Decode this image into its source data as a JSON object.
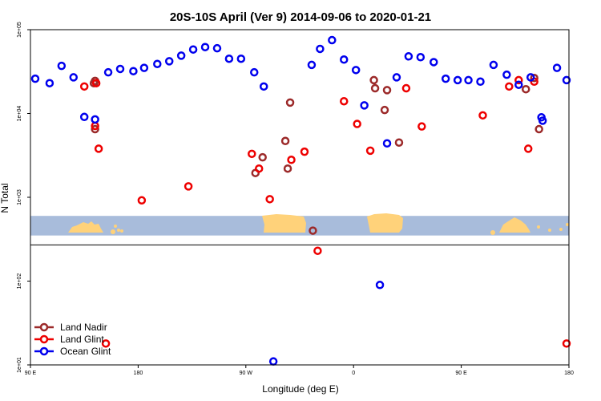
{
  "chart_data": {
    "type": "scatter",
    "title": "20S-10S April (Ver 9)   2014-09-06 to 2020-01-21",
    "xlabel": "Longitude (deg E)",
    "ylabel": "N Total",
    "xlim": [
      90,
      540
    ],
    "ylog": true,
    "ylim": [
      10,
      100000
    ],
    "x_ticks": [
      {
        "value": 90,
        "label": "90 E"
      },
      {
        "value": 180,
        "label": "180"
      },
      {
        "value": 270,
        "label": "90 W"
      },
      {
        "value": 360,
        "label": "0"
      },
      {
        "value": 450,
        "label": "90 E"
      },
      {
        "value": 540,
        "label": "180"
      }
    ],
    "y_ticks": [
      {
        "value": 10,
        "label": "1e+01"
      },
      {
        "value": 100,
        "label": "1e+02"
      },
      {
        "value": 1000,
        "label": "1e+03"
      },
      {
        "value": 10000,
        "label": "1e+04"
      },
      {
        "value": 100000,
        "label": "1e+05"
      }
    ],
    "legend_position": "bottom-left",
    "map_strip": {
      "y_top": 600,
      "y_bottom": 350,
      "ocean_color": "#a8bcdb",
      "land_color": "#ffd27a"
    },
    "reference_line": 270,
    "series": [
      {
        "name": "Land Nadir",
        "color": "#9c2a2a",
        "points": [
          [
            143,
            23000
          ],
          [
            144,
            24500
          ],
          [
            144,
            6500
          ],
          [
            305,
            2200
          ],
          [
            278,
            1950
          ],
          [
            284,
            3000
          ],
          [
            307,
            13500
          ],
          [
            303,
            4700
          ],
          [
            326,
            400
          ],
          [
            377,
            25000
          ],
          [
            378,
            20000
          ],
          [
            386,
            11000
          ],
          [
            388,
            19000
          ],
          [
            398,
            4500
          ],
          [
            504,
            19500
          ],
          [
            511,
            26500
          ],
          [
            515,
            6500
          ]
        ]
      },
      {
        "name": "Land Glint",
        "color": "#ee0000",
        "points": [
          [
            135,
            21000
          ],
          [
            145,
            23000
          ],
          [
            144,
            7100
          ],
          [
            147,
            3800
          ],
          [
            183,
            920
          ],
          [
            222,
            1350
          ],
          [
            275,
            3300
          ],
          [
            281,
            2200
          ],
          [
            290,
            950
          ],
          [
            308,
            2800
          ],
          [
            319,
            3500
          ],
          [
            330,
            230
          ],
          [
            352,
            14000
          ],
          [
            363,
            7500
          ],
          [
            374,
            3600
          ],
          [
            404,
            20000
          ],
          [
            417,
            7000
          ],
          [
            468,
            9500
          ],
          [
            490,
            21000
          ],
          [
            498,
            25000
          ],
          [
            511,
            24000
          ],
          [
            506,
            3800
          ],
          [
            153,
            18
          ],
          [
            538,
            18
          ]
        ]
      },
      {
        "name": "Ocean Glint",
        "color": "#0000ee",
        "points": [
          [
            94,
            26000
          ],
          [
            106,
            23000
          ],
          [
            116,
            37000
          ],
          [
            126,
            27000
          ],
          [
            135,
            9100
          ],
          [
            144,
            8500
          ],
          [
            155,
            31000
          ],
          [
            165,
            34000
          ],
          [
            176,
            32000
          ],
          [
            185,
            35000
          ],
          [
            196,
            39000
          ],
          [
            206,
            42000
          ],
          [
            216,
            49000
          ],
          [
            226,
            58000
          ],
          [
            236,
            62000
          ],
          [
            246,
            60000
          ],
          [
            256,
            45000
          ],
          [
            266,
            45000
          ],
          [
            277,
            31000
          ],
          [
            285,
            21000
          ],
          [
            293,
            11
          ],
          [
            325,
            38000
          ],
          [
            332,
            59000
          ],
          [
            342,
            75000
          ],
          [
            352,
            44000
          ],
          [
            362,
            33000
          ],
          [
            369,
            12500
          ],
          [
            382,
            90
          ],
          [
            388,
            4400
          ],
          [
            396,
            27000
          ],
          [
            406,
            48000
          ],
          [
            416,
            47000
          ],
          [
            427,
            41000
          ],
          [
            437,
            26000
          ],
          [
            447,
            25000
          ],
          [
            456,
            25000
          ],
          [
            466,
            24000
          ],
          [
            477,
            38000
          ],
          [
            488,
            29000
          ],
          [
            498,
            22000
          ],
          [
            508,
            27000
          ],
          [
            517,
            9000
          ],
          [
            518,
            8200
          ],
          [
            530,
            35000
          ],
          [
            538,
            25000
          ]
        ]
      }
    ]
  }
}
